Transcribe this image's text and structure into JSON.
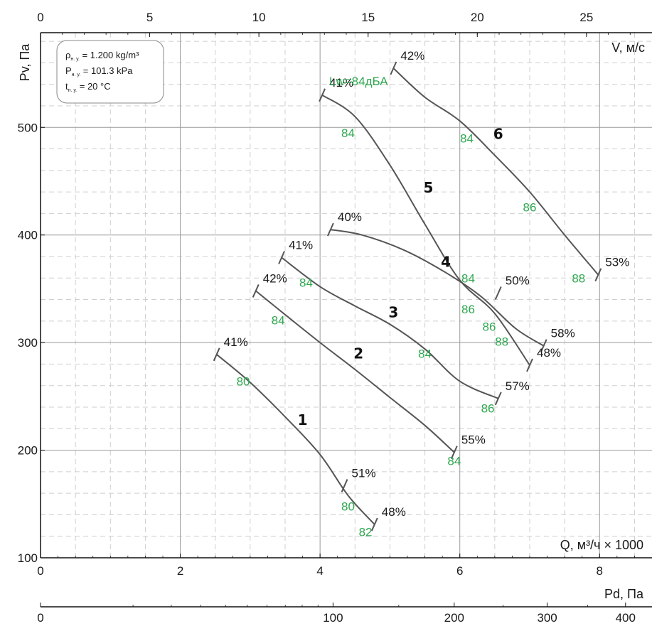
{
  "chart_data": {
    "type": "line",
    "axes": {
      "bottom": {
        "label": "Q, м³/ч × 1000",
        "range": [
          0,
          8.75
        ],
        "ticks": [
          "0",
          "2",
          "4",
          "6",
          "8"
        ]
      },
      "left": {
        "label": "Pv, Па",
        "range": [
          100,
          588
        ],
        "ticks": [
          "100",
          "200",
          "300",
          "400",
          "500"
        ]
      },
      "top": {
        "label": "V, м/с",
        "range": [
          0,
          28
        ],
        "ticks": [
          "0",
          "5",
          "10",
          "15",
          "20",
          "25"
        ]
      },
      "pd": {
        "label": "Pd, Па",
        "ticks": [
          "0",
          "100",
          "200",
          "300",
          "400"
        ],
        "tick_values": [
          0,
          100,
          200,
          300,
          400
        ]
      }
    },
    "conditions": {
      "density_label": "ρ",
      "density_sub": "н. у.",
      "density_value": " = 1.200 kg/m³",
      "pressure_label": "P",
      "pressure_sub": "н. у.",
      "pressure_value": " = 101.3 kPa",
      "temperature_label": "t",
      "temperature_sub": "н. у.",
      "temperature_value": " = 20 °C"
    },
    "noise_legend": "Lw=84дБА",
    "series": [
      {
        "id": "1",
        "points": [
          [
            2.52,
            289
          ],
          [
            3.0,
            263
          ],
          [
            3.5,
            231
          ],
          [
            4.0,
            196
          ],
          [
            4.4,
            158
          ],
          [
            4.78,
            131
          ]
        ],
        "efficiency_labels": [
          {
            "x": 2.52,
            "y": 289,
            "text": "41%"
          },
          {
            "x": 4.35,
            "y": 167,
            "text": "51%"
          },
          {
            "x": 4.78,
            "y": 131,
            "text": "48%"
          }
        ],
        "noise_labels": [
          {
            "x": 2.9,
            "y": 264,
            "text": "80"
          },
          {
            "x": 4.4,
            "y": 148,
            "text": "80"
          },
          {
            "x": 4.65,
            "y": 124,
            "text": "82"
          }
        ]
      },
      {
        "id": "2",
        "points": [
          [
            3.08,
            348
          ],
          [
            3.5,
            326
          ],
          [
            4.0,
            300
          ],
          [
            4.5,
            275
          ],
          [
            5.0,
            249
          ],
          [
            5.5,
            223
          ],
          [
            5.92,
            198
          ]
        ],
        "efficiency_labels": [
          {
            "x": 3.08,
            "y": 348,
            "text": "42%"
          },
          {
            "x": 5.92,
            "y": 198,
            "text": "55%"
          }
        ],
        "noise_labels": [
          {
            "x": 3.4,
            "y": 321,
            "text": "84"
          },
          {
            "x": 5.92,
            "y": 190,
            "text": "84"
          }
        ]
      },
      {
        "id": "3",
        "points": [
          [
            3.45,
            379
          ],
          [
            4.0,
            352
          ],
          [
            4.5,
            334
          ],
          [
            5.0,
            317
          ],
          [
            5.5,
            294
          ],
          [
            6.0,
            264
          ],
          [
            6.55,
            248
          ]
        ],
        "efficiency_labels": [
          {
            "x": 3.45,
            "y": 379,
            "text": "41%"
          },
          {
            "x": 6.55,
            "y": 248,
            "text": "57%"
          }
        ],
        "noise_labels": [
          {
            "x": 3.8,
            "y": 356,
            "text": "84"
          },
          {
            "x": 5.5,
            "y": 290,
            "text": "84"
          },
          {
            "x": 6.4,
            "y": 239,
            "text": "86"
          }
        ]
      },
      {
        "id": "4",
        "points": [
          [
            4.15,
            405
          ],
          [
            4.6,
            400
          ],
          [
            5.2,
            386
          ],
          [
            5.8,
            365
          ],
          [
            6.3,
            343
          ],
          [
            6.8,
            313
          ],
          [
            7.2,
            297
          ]
        ],
        "efficiency_labels": [
          {
            "x": 4.15,
            "y": 405,
            "text": "40%"
          },
          {
            "x": 7.2,
            "y": 297,
            "text": "58%"
          }
        ],
        "noise_labels": [
          {
            "x": 6.12,
            "y": 360,
            "text": "84"
          },
          {
            "x": 6.12,
            "y": 331,
            "text": "86"
          },
          {
            "x": 6.42,
            "y": 315,
            "text": "86"
          },
          {
            "x": 6.6,
            "y": 301,
            "text": "88"
          }
        ]
      },
      {
        "id": "5",
        "points": [
          [
            4.03,
            530
          ],
          [
            4.5,
            510
          ],
          [
            5.0,
            465
          ],
          [
            5.5,
            410
          ],
          [
            6.0,
            358
          ],
          [
            6.5,
            327
          ],
          [
            7.0,
            279
          ]
        ],
        "efficiency_labels": [
          {
            "x": 4.03,
            "y": 530,
            "text": "41%"
          },
          {
            "x": 6.55,
            "y": 346,
            "text": "50%"
          },
          {
            "x": 7.0,
            "y": 279,
            "text": "48%"
          }
        ],
        "noise_labels": [
          {
            "x": 4.4,
            "y": 495,
            "text": "84"
          }
        ]
      },
      {
        "id": "6",
        "points": [
          [
            5.05,
            555
          ],
          [
            5.5,
            528
          ],
          [
            6.0,
            506
          ],
          [
            6.5,
            474
          ],
          [
            7.0,
            440
          ],
          [
            7.5,
            400
          ],
          [
            7.98,
            363
          ]
        ],
        "efficiency_labels": [
          {
            "x": 5.05,
            "y": 555,
            "text": "42%"
          },
          {
            "x": 7.98,
            "y": 363,
            "text": "53%"
          }
        ],
        "noise_labels": [
          {
            "x": 6.1,
            "y": 490,
            "text": "84"
          },
          {
            "x": 7.0,
            "y": 426,
            "text": "86"
          },
          {
            "x": 7.7,
            "y": 360,
            "text": "88"
          }
        ]
      }
    ],
    "curve_labels": [
      {
        "id": "1",
        "x": 3.75,
        "y": 228
      },
      {
        "id": "2",
        "x": 4.55,
        "y": 290
      },
      {
        "id": "3",
        "x": 5.05,
        "y": 328
      },
      {
        "id": "4",
        "x": 5.8,
        "y": 375
      },
      {
        "id": "5",
        "x": 5.55,
        "y": 444
      },
      {
        "id": "6",
        "x": 6.55,
        "y": 494
      }
    ],
    "grid": true,
    "colors": {
      "curve": "#555555",
      "noise": "#2ea84f",
      "grid_major": "#9a9a9a",
      "grid_minor": "#cfcfcf",
      "axis": "#111111"
    }
  }
}
